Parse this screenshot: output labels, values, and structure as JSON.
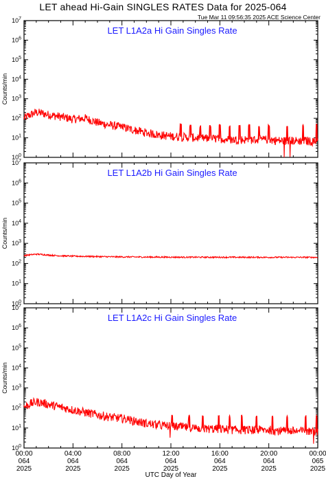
{
  "title": "LET ahead Hi-Gain SINGLES RATES Data for 2025-064",
  "stamp": "Tue Mar 11 09:56:35 2025 ACE Science Center",
  "xlabel": "UTC Day of Year",
  "chart_data": [
    {
      "type": "line",
      "title": "LET L1A2a Hi Gain Singles Rate",
      "ylabel": "Counts/min",
      "yscale": "log",
      "ylim": [
        1,
        10000000
      ],
      "xlim": [
        0,
        24
      ],
      "color": "#ff0000",
      "x": [
        0,
        0.5,
        1,
        1.5,
        2,
        3,
        4,
        5,
        6,
        7,
        8,
        9,
        10,
        11,
        12,
        13,
        14,
        15,
        16,
        17,
        18,
        19,
        20,
        21,
        22,
        23,
        24
      ],
      "y": [
        100,
        150,
        200,
        180,
        150,
        120,
        90,
        100,
        60,
        45,
        35,
        25,
        18,
        14,
        12,
        11,
        10,
        9,
        9,
        8,
        8,
        8,
        8,
        7,
        7,
        7,
        6
      ],
      "spikes": [
        {
          "x": 8.0,
          "y": 30
        },
        {
          "x": 12.8,
          "y": 50
        },
        {
          "x": 13.6,
          "y": 45
        },
        {
          "x": 14.4,
          "y": 40
        },
        {
          "x": 15.2,
          "y": 45
        },
        {
          "x": 16.0,
          "y": 45
        },
        {
          "x": 16.8,
          "y": 40
        },
        {
          "x": 17.6,
          "y": 45
        },
        {
          "x": 18.4,
          "y": 45
        },
        {
          "x": 19.2,
          "y": 40
        },
        {
          "x": 20.0,
          "y": 45
        },
        {
          "x": 21.5,
          "y": 40
        },
        {
          "x": 22.8,
          "y": 45
        },
        {
          "x": 23.9,
          "y": 50
        }
      ]
    },
    {
      "type": "line",
      "title": "LET L1A2b Hi Gain Singles Rate",
      "ylabel": "Counts/min",
      "yscale": "log",
      "ylim": [
        1,
        10000000
      ],
      "xlim": [
        0,
        24
      ],
      "color": "#ff0000",
      "x": [
        0,
        0.5,
        1,
        1.5,
        2,
        3,
        4,
        5,
        6,
        7,
        8,
        9,
        10,
        11,
        12,
        13,
        14,
        15,
        16,
        17,
        18,
        19,
        20,
        21,
        22,
        23,
        24
      ],
      "y": [
        250,
        270,
        290,
        280,
        260,
        240,
        230,
        225,
        220,
        215,
        212,
        210,
        208,
        207,
        206,
        205,
        205,
        204,
        204,
        203,
        203,
        203,
        202,
        202,
        202,
        202,
        201
      ],
      "spikes": []
    },
    {
      "type": "line",
      "title": "LET L1A2c Hi Gain Singles Rate",
      "ylabel": "Counts/min",
      "yscale": "log",
      "ylim": [
        1,
        10000000
      ],
      "xlim": [
        0,
        24
      ],
      "color": "#ff0000",
      "x": [
        0,
        0.5,
        1,
        1.5,
        2,
        3,
        4,
        5,
        6,
        7,
        8,
        9,
        10,
        11,
        12,
        13,
        14,
        15,
        16,
        17,
        18,
        19,
        20,
        21,
        22,
        23,
        24
      ],
      "y": [
        110,
        160,
        200,
        180,
        150,
        110,
        80,
        60,
        45,
        35,
        30,
        22,
        17,
        14,
        12,
        11,
        10,
        9,
        9,
        8,
        8,
        8,
        8,
        7,
        7,
        7,
        6
      ],
      "spikes": [
        {
          "x": 8.5,
          "y": 28
        },
        {
          "x": 12.1,
          "y": 40
        },
        {
          "x": 13.5,
          "y": 40
        },
        {
          "x": 14.6,
          "y": 40
        },
        {
          "x": 15.9,
          "y": 40
        },
        {
          "x": 16.8,
          "y": 40
        },
        {
          "x": 17.8,
          "y": 40
        },
        {
          "x": 19.0,
          "y": 40
        },
        {
          "x": 20.3,
          "y": 40
        },
        {
          "x": 21.5,
          "y": 40
        },
        {
          "x": 23.0,
          "y": 40
        },
        {
          "x": 23.9,
          "y": 40
        }
      ]
    }
  ],
  "x_ticks": [
    {
      "time": "00:00",
      "doy": "064",
      "year": "2025"
    },
    {
      "time": "04:00",
      "doy": "064",
      "year": "2025"
    },
    {
      "time": "08:00",
      "doy": "064",
      "year": "2025"
    },
    {
      "time": "12:00",
      "doy": "064",
      "year": "2025"
    },
    {
      "time": "16:00",
      "doy": "064",
      "year": "2025"
    },
    {
      "time": "20:00",
      "doy": "064",
      "year": "2025"
    },
    {
      "time": "00:00",
      "doy": "065",
      "year": "2025"
    }
  ]
}
